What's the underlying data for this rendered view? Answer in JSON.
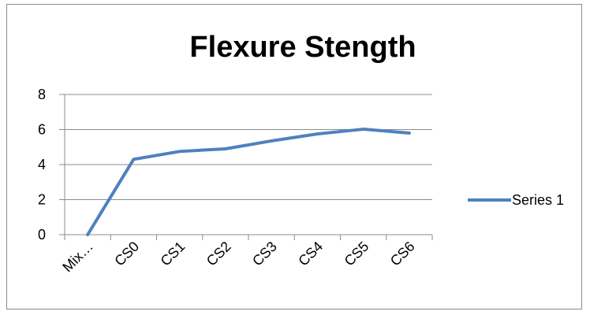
{
  "chart_data": {
    "type": "line",
    "title": "Flexure Stength",
    "categories": [
      "Mix…",
      "CS0",
      "CS1",
      "CS2",
      "CS3",
      "CS4",
      "CS5",
      "CS6"
    ],
    "series": [
      {
        "name": "Series 1",
        "values": [
          0,
          4.3,
          4.75,
          4.9,
          5.35,
          5.75,
          6.02,
          5.8
        ],
        "color": "#4f81bd"
      }
    ],
    "ylim": [
      0,
      8
    ],
    "yticks": [
      0,
      2,
      4,
      6,
      8
    ],
    "xlabel": "",
    "ylabel": "",
    "grid": true,
    "legend": "right"
  }
}
